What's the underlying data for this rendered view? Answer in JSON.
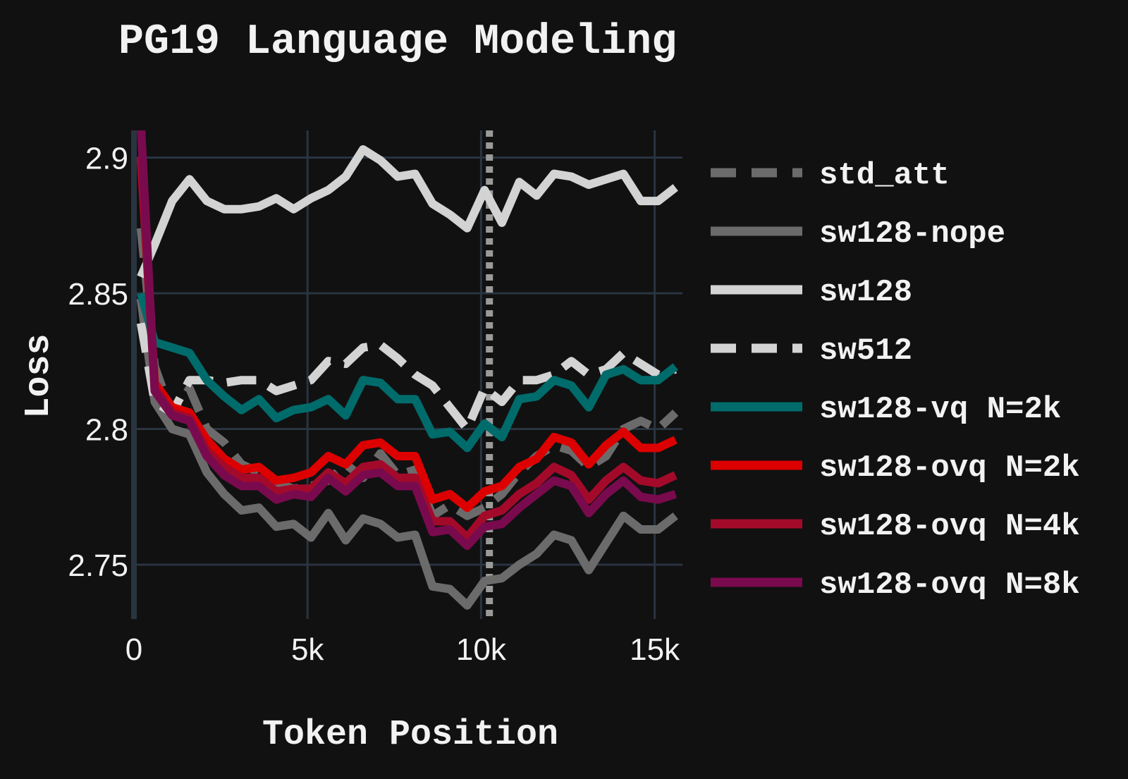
{
  "chart_data": {
    "type": "line",
    "title": "PG19 Language Modeling",
    "xlabel": "Token Position",
    "ylabel": "Loss",
    "xlim": [
      0,
      15800
    ],
    "ylim": [
      2.73,
      2.91
    ],
    "x_ticks": [
      0,
      5000,
      10000,
      15000
    ],
    "x_tick_labels": [
      "0",
      "5k",
      "10k",
      "15k"
    ],
    "y_ticks": [
      2.75,
      2.8,
      2.85,
      2.9
    ],
    "y_tick_labels": [
      "2.75",
      "2.8",
      "2.85",
      "2.9"
    ],
    "grid": true,
    "legend_position": "right",
    "vline": {
      "x": 10240,
      "style": "dotted",
      "color": "#9a9a9a"
    },
    "x": [
      200,
      600,
      1100,
      1600,
      2100,
      2600,
      3100,
      3600,
      4100,
      4600,
      5100,
      5600,
      6100,
      6600,
      7100,
      7600,
      8100,
      8600,
      9100,
      9600,
      10100,
      10600,
      11100,
      11600,
      12100,
      12600,
      13100,
      13600,
      14100,
      14600,
      15100,
      15600
    ],
    "series": [
      {
        "name": "std_att",
        "color": "#6b6b6b",
        "dash": "dashed",
        "width": 12,
        "values": [
          2.874,
          2.823,
          2.805,
          2.815,
          2.8,
          2.795,
          2.787,
          2.784,
          2.78,
          2.778,
          2.779,
          2.781,
          2.787,
          2.782,
          2.791,
          2.783,
          2.785,
          2.768,
          2.772,
          2.768,
          2.771,
          2.776,
          2.784,
          2.79,
          2.794,
          2.792,
          2.786,
          2.79,
          2.8,
          2.803,
          2.8,
          2.806
        ]
      },
      {
        "name": "sw128-nope",
        "color": "#6b6b6b",
        "dash": "solid",
        "width": 12,
        "values": [
          2.848,
          2.81,
          2.8,
          2.798,
          2.784,
          2.776,
          2.77,
          2.771,
          2.764,
          2.765,
          2.76,
          2.769,
          2.759,
          2.767,
          2.765,
          2.76,
          2.761,
          2.742,
          2.741,
          2.735,
          2.744,
          2.745,
          2.75,
          2.754,
          2.761,
          2.759,
          2.748,
          2.758,
          2.768,
          2.763,
          2.763,
          2.768
        ]
      },
      {
        "name": "sw128",
        "color": "#d3d3d3",
        "dash": "solid",
        "width": 12,
        "values": [
          2.856,
          2.868,
          2.884,
          2.892,
          2.884,
          2.881,
          2.881,
          2.882,
          2.885,
          2.881,
          2.885,
          2.888,
          2.893,
          2.903,
          2.899,
          2.893,
          2.894,
          2.883,
          2.879,
          2.874,
          2.888,
          2.876,
          2.891,
          2.886,
          2.894,
          2.893,
          2.89,
          2.892,
          2.894,
          2.884,
          2.884,
          2.889
        ]
      },
      {
        "name": "sw512",
        "color": "#d3d3d3",
        "dash": "dashed",
        "width": 12,
        "values": [
          2.839,
          2.81,
          2.806,
          2.818,
          2.818,
          2.817,
          2.818,
          2.818,
          2.814,
          2.816,
          2.818,
          2.825,
          2.824,
          2.83,
          2.831,
          2.826,
          2.82,
          2.816,
          2.808,
          2.8,
          2.815,
          2.81,
          2.818,
          2.818,
          2.82,
          2.825,
          2.82,
          2.822,
          2.828,
          2.824,
          2.82,
          2.822
        ]
      },
      {
        "name": "sw128-vq N=2k",
        "color": "#006b6b",
        "dash": "solid",
        "width": 12,
        "values": [
          2.85,
          2.832,
          2.83,
          2.828,
          2.818,
          2.812,
          2.807,
          2.811,
          2.804,
          2.807,
          2.808,
          2.811,
          2.805,
          2.818,
          2.817,
          2.811,
          2.811,
          2.798,
          2.799,
          2.793,
          2.802,
          2.797,
          2.811,
          2.812,
          2.818,
          2.816,
          2.808,
          2.82,
          2.822,
          2.818,
          2.818,
          2.823
        ]
      },
      {
        "name": "sw128-ovq N=2k",
        "color": "#dd0000",
        "dash": "solid",
        "width": 12,
        "values": [
          2.9,
          2.817,
          2.808,
          2.806,
          2.796,
          2.789,
          2.785,
          2.786,
          2.781,
          2.782,
          2.784,
          2.79,
          2.787,
          2.794,
          2.795,
          2.79,
          2.79,
          2.774,
          2.776,
          2.771,
          2.777,
          2.779,
          2.786,
          2.789,
          2.797,
          2.795,
          2.787,
          2.794,
          2.799,
          2.793,
          2.793,
          2.796
        ]
      },
      {
        "name": "sw128-ovq N=4k",
        "color": "#a30a2a",
        "dash": "solid",
        "width": 12,
        "values": [
          2.9,
          2.815,
          2.806,
          2.804,
          2.792,
          2.786,
          2.782,
          2.782,
          2.777,
          2.778,
          2.778,
          2.784,
          2.78,
          2.786,
          2.787,
          2.782,
          2.782,
          2.766,
          2.766,
          2.76,
          2.768,
          2.77,
          2.776,
          2.78,
          2.786,
          2.783,
          2.774,
          2.781,
          2.786,
          2.781,
          2.78,
          2.783
        ]
      },
      {
        "name": "sw128-ovq N=8k",
        "color": "#7a0a4e",
        "dash": "solid",
        "width": 12,
        "values": [
          2.912,
          2.814,
          2.805,
          2.803,
          2.79,
          2.783,
          2.779,
          2.779,
          2.774,
          2.776,
          2.775,
          2.782,
          2.777,
          2.783,
          2.784,
          2.779,
          2.779,
          2.762,
          2.763,
          2.757,
          2.764,
          2.765,
          2.771,
          2.776,
          2.781,
          2.779,
          2.769,
          2.776,
          2.781,
          2.775,
          2.774,
          2.776
        ]
      }
    ]
  }
}
